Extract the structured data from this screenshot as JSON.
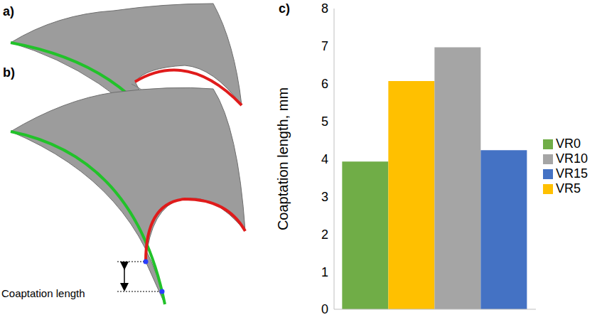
{
  "panel_labels": [
    "a)",
    "b)",
    "c)"
  ],
  "annotation": "Coaptation length",
  "chart_data": {
    "type": "bar",
    "y_label": "Coaptation length, mm",
    "categories": [
      null
    ],
    "series": [
      {
        "name": "VR0",
        "color": "#70ad47",
        "values": [
          3.93
        ]
      },
      {
        "name": "VR5",
        "color": "#ffc000",
        "values": [
          6.07
        ]
      },
      {
        "name": "VR10",
        "color": "#a5a5a5",
        "values": [
          6.97
        ]
      },
      {
        "name": "VR15",
        "color": "#4472c4",
        "values": [
          4.23
        ]
      }
    ],
    "ylim": [
      0,
      8
    ],
    "yticks": [
      0,
      1,
      2,
      3,
      4,
      5,
      6,
      7,
      8
    ],
    "legend": "right",
    "grid": false
  }
}
